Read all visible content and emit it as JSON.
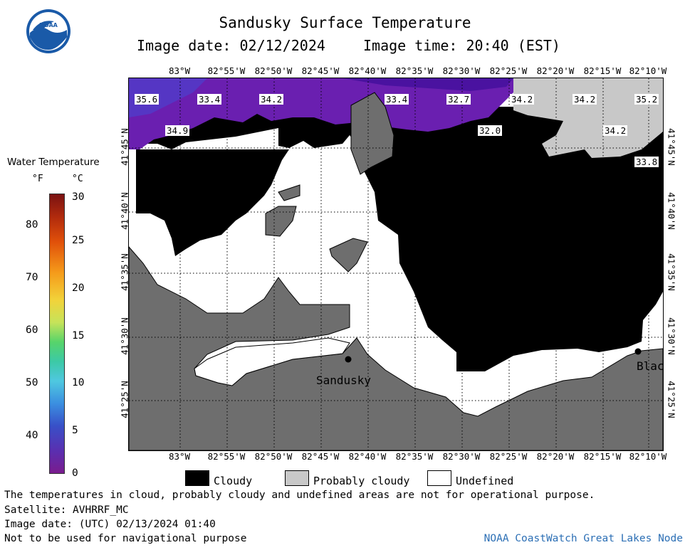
{
  "header": {
    "title": "Sandusky Surface Temperature",
    "date_label": "Image date: 02/12/2024",
    "time_label": "Image time: 20:40 (EST)"
  },
  "logo": {
    "text": "NOAA"
  },
  "colorbar": {
    "title": "Water Temperature",
    "unit_f": "°F",
    "unit_c": "°C",
    "f_ticks": [
      "80",
      "70",
      "60",
      "50",
      "40"
    ],
    "c_ticks": [
      "30",
      "25",
      "20",
      "15",
      "10",
      "5",
      "0"
    ]
  },
  "map": {
    "lon_labels": [
      "83°W",
      "82°55'W",
      "82°50'W",
      "82°45'W",
      "82°40'W",
      "82°35'W",
      "82°30'W",
      "82°25'W",
      "82°20'W",
      "82°15'W",
      "82°10'W"
    ],
    "lat_labels": [
      "41°45'N",
      "41°40'N",
      "41°35'N",
      "41°30'N",
      "41°25'N"
    ],
    "temp_labels": [
      "35.6",
      "33.4",
      "34.2",
      "33.4",
      "32.7",
      "34.2",
      "34.2",
      "35.2",
      "34.9",
      "32.0",
      "34.2",
      "33.8"
    ],
    "cities": [
      "Sandusky",
      "Blac"
    ],
    "colors": {
      "cloudy": "#000000",
      "probably_cloudy": "#c8c8c8",
      "land": "#6e6e6e",
      "undefined": "#ffffff"
    }
  },
  "legend": {
    "cloudy": "Cloudy",
    "probably_cloudy": "Probably cloudy",
    "undefined": "Undefined"
  },
  "notes": {
    "disclaimer": "The temperatures in cloud, probably cloudy and undefined areas are not for operational purpose.",
    "satellite": "Satellite: AVHRRF_MC",
    "utc_date": "Image date: (UTC) 02/13/2024  01:40",
    "navigation": "Not to be used for navigational purpose",
    "credit": "NOAA CoastWatch Great Lakes Node"
  }
}
